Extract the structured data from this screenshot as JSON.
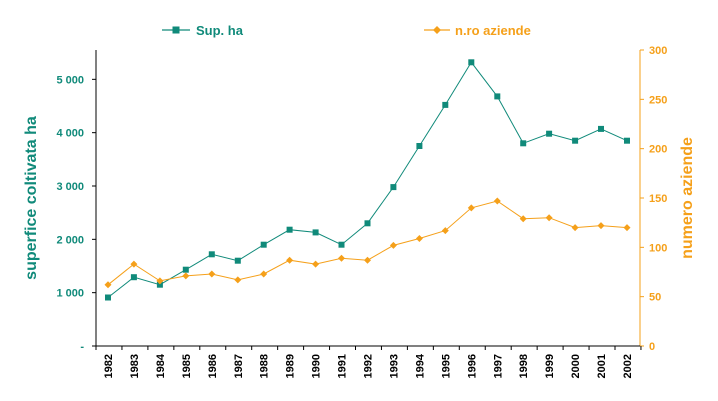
{
  "chart_data": {
    "type": "line",
    "categories": [
      "1982",
      "1983",
      "1984",
      "1985",
      "1986",
      "1987",
      "1988",
      "1989",
      "1990",
      "1991",
      "1992",
      "1993",
      "1994",
      "1995",
      "1996",
      "1997",
      "1998",
      "1999",
      "2000",
      "2001",
      "2002"
    ],
    "series": [
      {
        "name": "Sup. ha",
        "axis": "left",
        "color": "#108a7a",
        "marker": "square",
        "values": [
          910,
          1290,
          1150,
          1430,
          1720,
          1600,
          1900,
          2180,
          2130,
          1900,
          2300,
          2980,
          3750,
          4520,
          5320,
          4680,
          3800,
          3980,
          3850,
          4070,
          3850
        ]
      },
      {
        "name": "n.ro aziende",
        "axis": "right",
        "color": "#f5a01a",
        "marker": "diamond",
        "values": [
          62,
          83,
          66,
          71,
          73,
          67,
          73,
          87,
          83,
          89,
          87,
          102,
          109,
          117,
          140,
          147,
          129,
          130,
          120,
          122,
          120
        ]
      }
    ],
    "y_left": {
      "label": "superfice coltivata ha",
      "ylim": [
        0,
        5550
      ],
      "ticks": [
        0,
        1000,
        2000,
        3000,
        4000,
        5000
      ],
      "tick_labels": [
        "-",
        "1 000",
        "2 000",
        "3 000",
        "4 000",
        "5 000"
      ],
      "color": "#108a7a"
    },
    "y_right": {
      "label": "numero aziende",
      "ylim": [
        0,
        300
      ],
      "ticks": [
        0,
        50,
        100,
        150,
        200,
        250,
        300
      ],
      "tick_labels": [
        "0",
        "50",
        "100",
        "150",
        "200",
        "250",
        "300"
      ],
      "color": "#f5a01a"
    },
    "x_tick_orientation": "vertical",
    "grid": false,
    "legend_position": "top"
  }
}
